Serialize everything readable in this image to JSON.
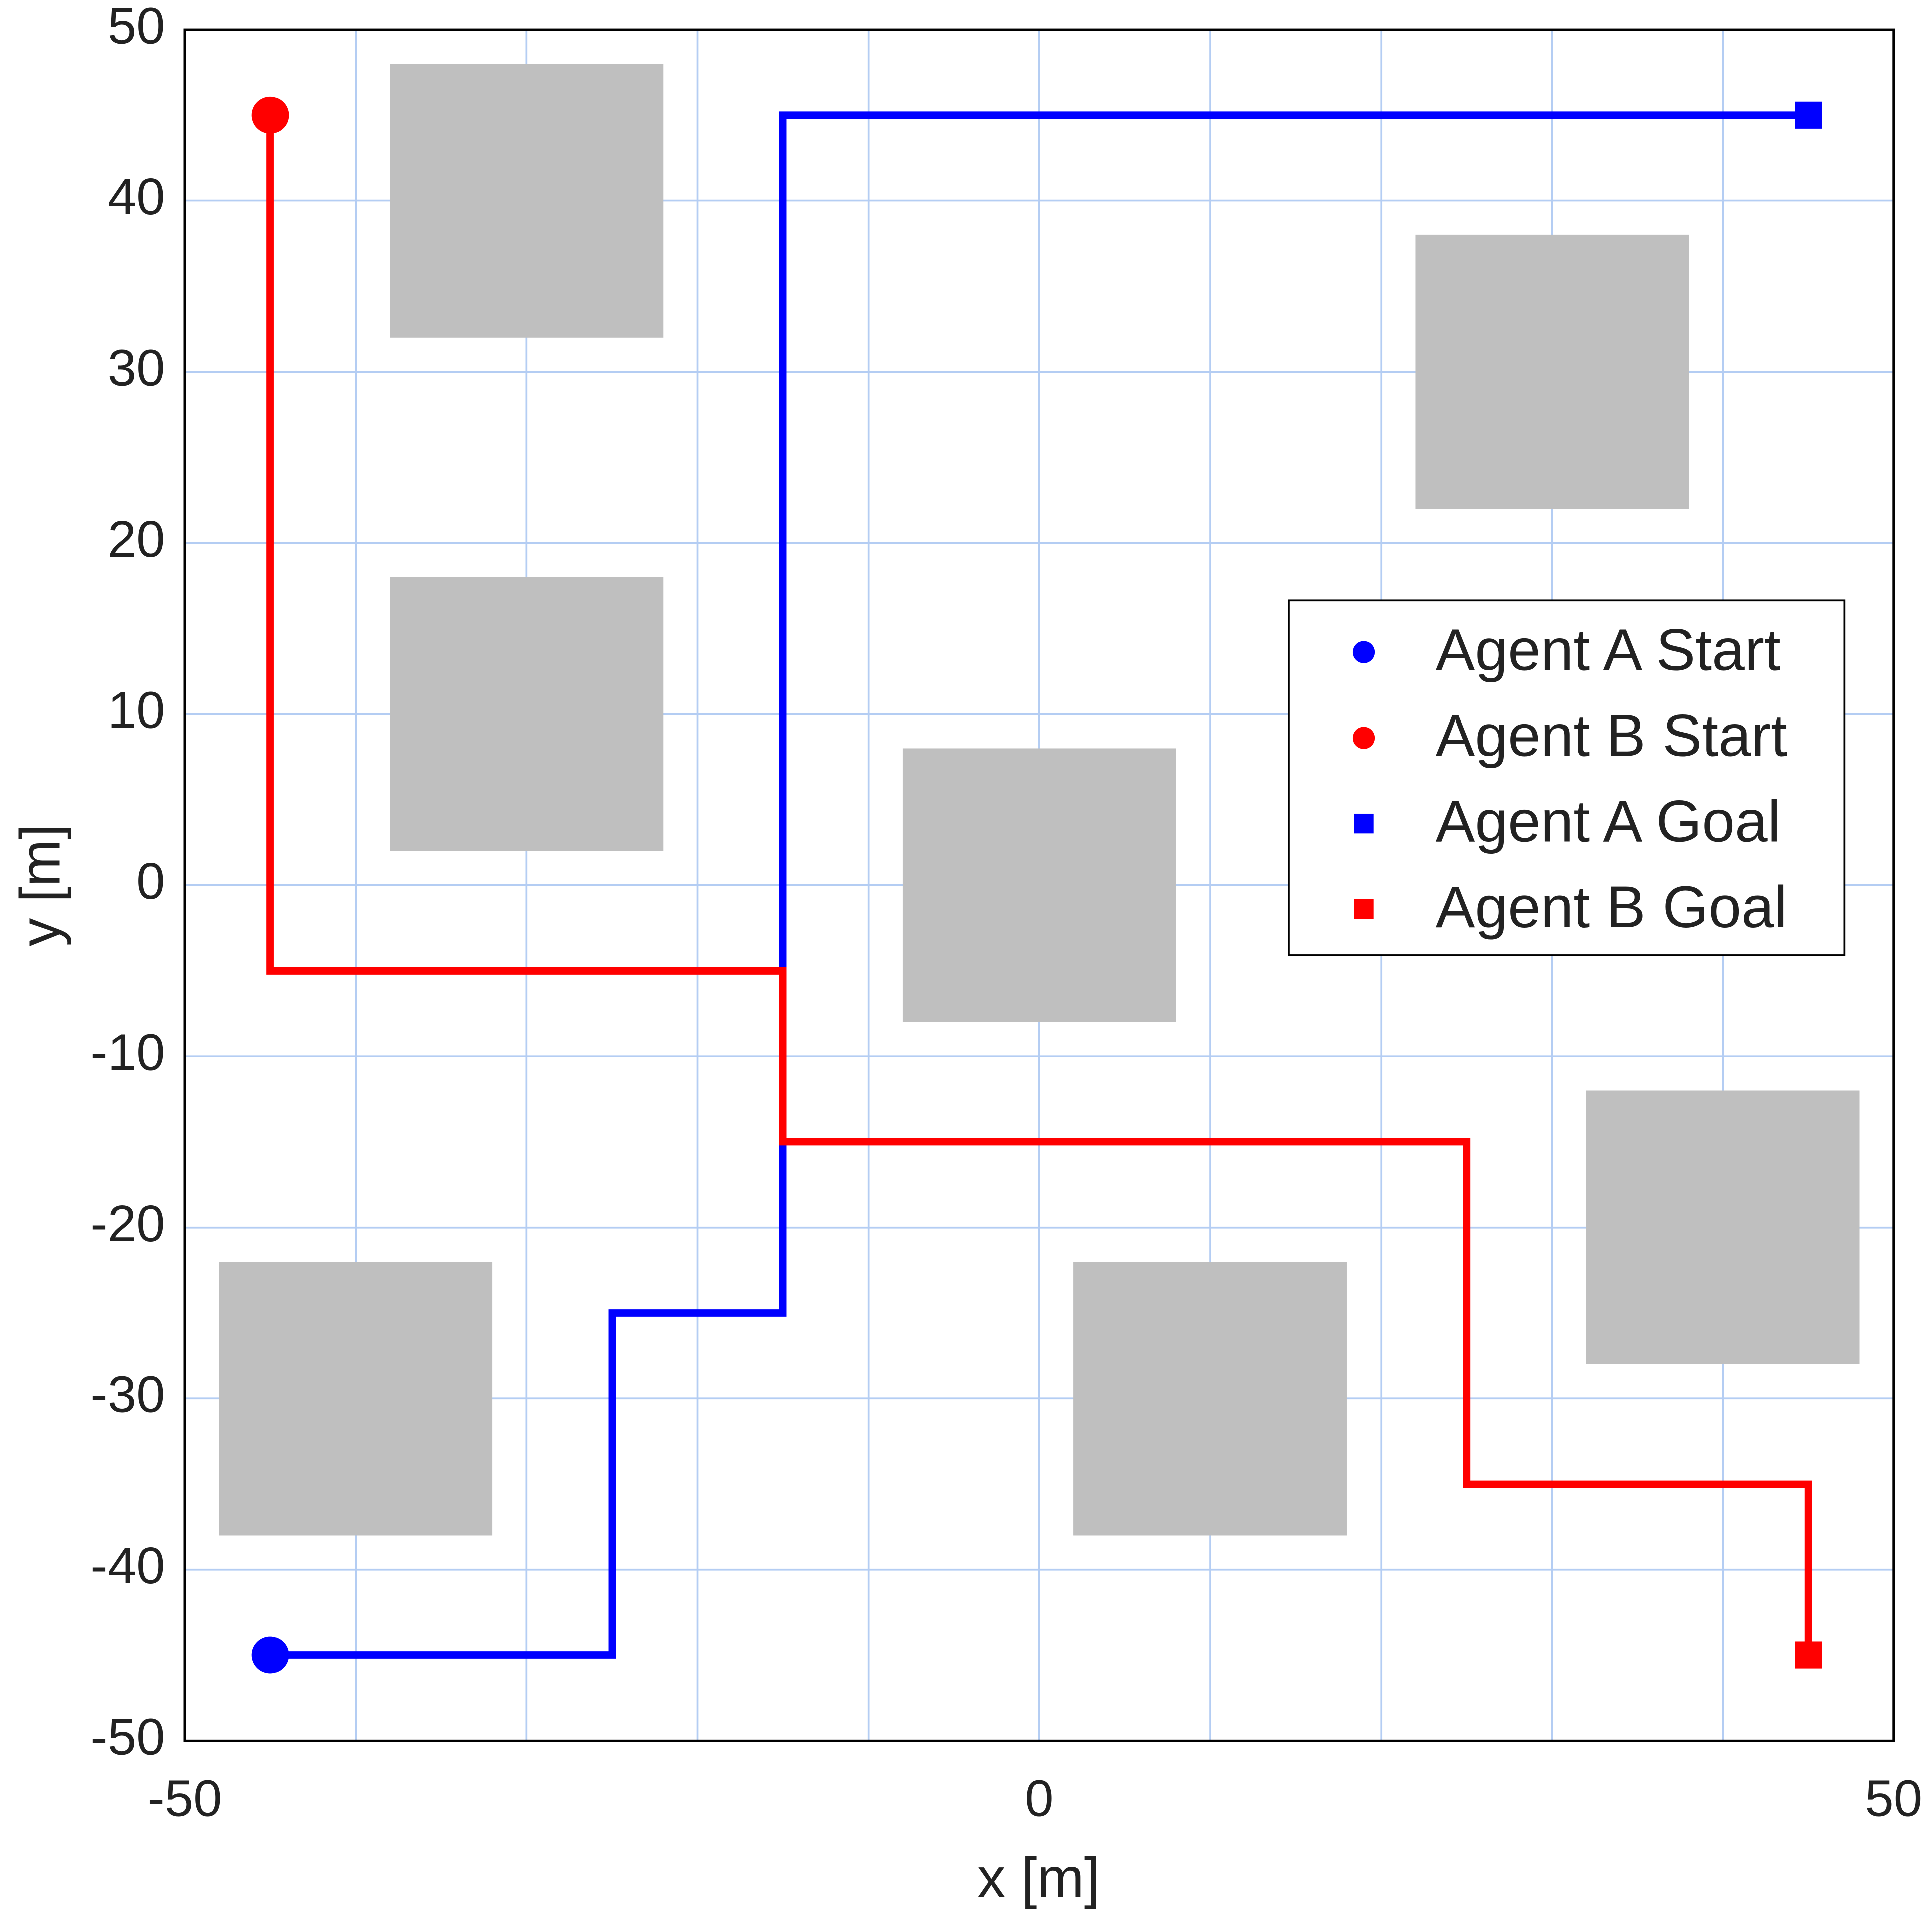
{
  "chart_data": {
    "type": "line",
    "xlabel": "x [m]",
    "ylabel": "y [m]",
    "xlim": [
      -50,
      50
    ],
    "ylim": [
      -50,
      50
    ],
    "xticks": [
      -50,
      0,
      50
    ],
    "xminorticks": [
      -40,
      -30,
      -20,
      -10,
      10,
      20,
      30,
      40
    ],
    "yticks": [
      -50,
      -40,
      -30,
      -20,
      -10,
      0,
      10,
      20,
      30,
      40,
      50
    ],
    "grid": true,
    "grid_color": "#b4cdf3",
    "obstacle_color": "#bfbfbf",
    "obstacles": [
      {
        "x": [
          -38,
          -22
        ],
        "y": [
          32,
          48
        ]
      },
      {
        "x": [
          -38,
          -22
        ],
        "y": [
          2,
          18
        ]
      },
      {
        "x": [
          -8,
          8
        ],
        "y": [
          -8,
          8
        ]
      },
      {
        "x": [
          22,
          38
        ],
        "y": [
          22,
          38
        ]
      },
      {
        "x": [
          32,
          48
        ],
        "y": [
          -28,
          -12
        ]
      },
      {
        "x": [
          2,
          18
        ],
        "y": [
          -38,
          -22
        ]
      },
      {
        "x": [
          -48,
          -32
        ],
        "y": [
          -38,
          -22
        ]
      }
    ],
    "paths": [
      {
        "color": "#0000ff",
        "x": [
          -45,
          -25,
          -25,
          -15,
          -15,
          45
        ],
        "values": [
          -45,
          -45,
          -25,
          -25,
          45,
          45
        ]
      },
      {
        "color": "#ff0000",
        "x": [
          -45,
          -45,
          -15,
          -15,
          25,
          25,
          45,
          45
        ],
        "values": [
          45,
          -5,
          -5,
          -15,
          -15,
          -35,
          -35,
          -45
        ]
      }
    ],
    "series": [
      {
        "name": "Agent A Start",
        "color": "#0000ff",
        "marker": "circle",
        "x": [
          -45
        ],
        "values": [
          -45
        ]
      },
      {
        "name": "Agent B Start",
        "color": "#ff0000",
        "marker": "circle",
        "x": [
          -45
        ],
        "values": [
          45
        ]
      },
      {
        "name": "Agent A Goal",
        "color": "#0000ff",
        "marker": "square",
        "x": [
          45
        ],
        "values": [
          45
        ]
      },
      {
        "name": "Agent B Goal",
        "color": "#ff0000",
        "marker": "square",
        "x": [
          45
        ],
        "values": [
          -45
        ]
      }
    ],
    "legend": "right"
  }
}
